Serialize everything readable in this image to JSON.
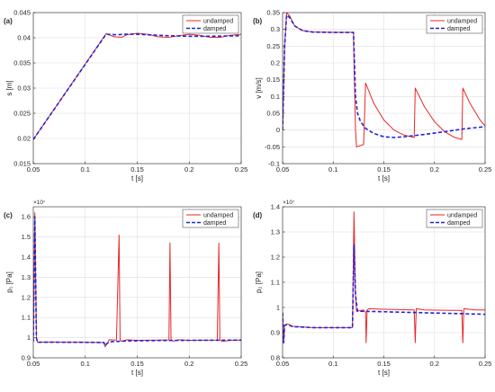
{
  "colors": {
    "undamped": "#e8262a",
    "damped": "#1f24d6",
    "grid": "#dedede",
    "axis": "#262626"
  },
  "chart_data": [
    {
      "id": "a",
      "panel_label": "(a)",
      "type": "line",
      "xlabel": "t [s]",
      "ylabel": "s [m]",
      "exponent": "",
      "xlim": [
        0.05,
        0.25
      ],
      "ylim": [
        0.015,
        0.045
      ],
      "xticks": [
        0.05,
        0.1,
        0.15,
        0.2,
        0.25
      ],
      "xtick_labels": [
        "0.05",
        "0.1",
        "0.15",
        "0.2",
        "0.25"
      ],
      "yticks": [
        0.015,
        0.02,
        0.025,
        0.03,
        0.035,
        0.04,
        0.045
      ],
      "ytick_labels": [
        "0.015",
        "0.02",
        "0.025",
        "0.03",
        "0.035",
        "0.04",
        "0.045"
      ],
      "grid": true,
      "legend": "top-right",
      "series": [
        {
          "name": "undamped",
          "style": "solid",
          "points": [
            [
              0.05,
              0.0198
            ],
            [
              0.12,
              0.0408
            ],
            [
              0.128,
              0.0402
            ],
            [
              0.135,
              0.0401
            ],
            [
              0.14,
              0.0406
            ],
            [
              0.15,
              0.0409
            ],
            [
              0.16,
              0.0407
            ],
            [
              0.17,
              0.0402
            ],
            [
              0.18,
              0.0401
            ],
            [
              0.19,
              0.0404
            ],
            [
              0.2,
              0.0407
            ],
            [
              0.21,
              0.0405
            ],
            [
              0.22,
              0.0401
            ],
            [
              0.23,
              0.0401
            ],
            [
              0.24,
              0.0405
            ],
            [
              0.25,
              0.0407
            ]
          ]
        },
        {
          "name": "damped",
          "style": "dashed",
          "points": [
            [
              0.05,
              0.0198
            ],
            [
              0.12,
              0.0407
            ],
            [
              0.13,
              0.0406
            ],
            [
              0.14,
              0.0407
            ],
            [
              0.15,
              0.0407
            ],
            [
              0.16,
              0.0406
            ],
            [
              0.17,
              0.0405
            ],
            [
              0.18,
              0.0404
            ],
            [
              0.2,
              0.0403
            ],
            [
              0.22,
              0.0403
            ],
            [
              0.25,
              0.0404
            ]
          ]
        }
      ]
    },
    {
      "id": "b",
      "panel_label": "(b)",
      "type": "line",
      "xlabel": "t [s]",
      "ylabel": "v [m/s]",
      "exponent": "",
      "xlim": [
        0.05,
        0.25
      ],
      "ylim": [
        -0.1,
        0.35
      ],
      "xticks": [
        0.05,
        0.1,
        0.15,
        0.2,
        0.25
      ],
      "xtick_labels": [
        "0.05",
        "0.1",
        "0.15",
        "0.2",
        "0.25"
      ],
      "yticks": [
        -0.1,
        -0.05,
        0,
        0.05,
        0.1,
        0.15,
        0.2,
        0.25,
        0.3,
        0.35
      ],
      "ytick_labels": [
        "-0.1",
        "-0.05",
        "0",
        "0.05",
        "0.1",
        "0.15",
        "0.2",
        "0.25",
        "0.3",
        "0.35"
      ],
      "grid": true,
      "legend": "top-right",
      "series": [
        {
          "name": "undamped",
          "style": "solid",
          "points": [
            [
              0.05,
              0.0
            ],
            [
              0.052,
              0.25
            ],
            [
              0.054,
              0.35
            ],
            [
              0.057,
              0.34
            ],
            [
              0.062,
              0.31
            ],
            [
              0.07,
              0.296
            ],
            [
              0.08,
              0.292
            ],
            [
              0.1,
              0.291
            ],
            [
              0.12,
              0.291
            ],
            [
              0.1205,
              0.2
            ],
            [
              0.122,
              0.0
            ],
            [
              0.123,
              -0.05
            ],
            [
              0.13,
              -0.043
            ],
            [
              0.132,
              0.14
            ],
            [
              0.14,
              0.08
            ],
            [
              0.15,
              0.03
            ],
            [
              0.16,
              0.0
            ],
            [
              0.17,
              -0.015
            ],
            [
              0.18,
              -0.022
            ],
            [
              0.181,
              0.125
            ],
            [
              0.19,
              0.07
            ],
            [
              0.2,
              0.025
            ],
            [
              0.21,
              -0.005
            ],
            [
              0.22,
              -0.022
            ],
            [
              0.227,
              -0.028
            ],
            [
              0.228,
              0.125
            ],
            [
              0.235,
              0.08
            ],
            [
              0.245,
              0.03
            ],
            [
              0.25,
              0.012
            ]
          ]
        },
        {
          "name": "damped",
          "style": "dashed",
          "points": [
            [
              0.05,
              0.0
            ],
            [
              0.052,
              0.25
            ],
            [
              0.054,
              0.343
            ],
            [
              0.057,
              0.335
            ],
            [
              0.062,
              0.31
            ],
            [
              0.07,
              0.296
            ],
            [
              0.08,
              0.292
            ],
            [
              0.1,
              0.291
            ],
            [
              0.12,
              0.291
            ],
            [
              0.121,
              0.2
            ],
            [
              0.122,
              0.1
            ],
            [
              0.124,
              0.05
            ],
            [
              0.127,
              0.025
            ],
            [
              0.132,
              0.005
            ],
            [
              0.14,
              -0.01
            ],
            [
              0.15,
              -0.02
            ],
            [
              0.16,
              -0.022
            ],
            [
              0.17,
              -0.02
            ],
            [
              0.19,
              -0.013
            ],
            [
              0.21,
              -0.005
            ],
            [
              0.23,
              0.004
            ],
            [
              0.25,
              0.01
            ]
          ]
        }
      ]
    },
    {
      "id": "c",
      "panel_label": "(c)",
      "type": "line",
      "xlabel": "t [s]",
      "ylabel": "p₁ [Pa]",
      "exponent": "×10⁷",
      "xlim": [
        0.05,
        0.25
      ],
      "ylim": [
        0.9,
        1.65
      ],
      "xticks": [
        0.05,
        0.1,
        0.15,
        0.2,
        0.25
      ],
      "xtick_labels": [
        "0.05",
        "0.1",
        "0.15",
        "0.2",
        "0.25"
      ],
      "yticks": [
        0.9,
        1.0,
        1.1,
        1.2,
        1.3,
        1.4,
        1.5,
        1.6
      ],
      "ytick_labels": [
        "0.9",
        "1",
        "1.1",
        "1.2",
        "1.3",
        "1.4",
        "1.5",
        "1.6"
      ],
      "grid": true,
      "legend": "top-right",
      "series": [
        {
          "name": "undamped",
          "style": "solid",
          "points": [
            [
              0.05,
              0.98
            ],
            [
              0.0515,
              1.62
            ],
            [
              0.053,
              1.0
            ],
            [
              0.054,
              0.977
            ],
            [
              0.06,
              0.978
            ],
            [
              0.1,
              0.977
            ],
            [
              0.118,
              0.976
            ],
            [
              0.119,
              0.955
            ],
            [
              0.121,
              0.97
            ],
            [
              0.123,
              0.99
            ],
            [
              0.13,
              0.988
            ],
            [
              0.1325,
              1.51
            ],
            [
              0.1335,
              0.99
            ],
            [
              0.135,
              0.982
            ],
            [
              0.14,
              0.99
            ],
            [
              0.15,
              0.987
            ],
            [
              0.17,
              0.988
            ],
            [
              0.1805,
              0.989
            ],
            [
              0.1815,
              1.47
            ],
            [
              0.1825,
              0.99
            ],
            [
              0.185,
              0.983
            ],
            [
              0.19,
              0.99
            ],
            [
              0.2,
              0.987
            ],
            [
              0.227,
              0.988
            ],
            [
              0.2285,
              1.47
            ],
            [
              0.2295,
              0.988
            ],
            [
              0.232,
              0.982
            ],
            [
              0.24,
              0.987
            ],
            [
              0.25,
              0.988
            ]
          ]
        },
        {
          "name": "damped",
          "style": "dashed",
          "points": [
            [
              0.05,
              0.98
            ],
            [
              0.0515,
              1.6
            ],
            [
              0.053,
              1.0
            ],
            [
              0.054,
              0.977
            ],
            [
              0.06,
              0.978
            ],
            [
              0.1,
              0.977
            ],
            [
              0.118,
              0.976
            ],
            [
              0.119,
              0.96
            ],
            [
              0.121,
              0.972
            ],
            [
              0.125,
              0.98
            ],
            [
              0.14,
              0.984
            ],
            [
              0.17,
              0.986
            ],
            [
              0.2,
              0.987
            ],
            [
              0.25,
              0.988
            ]
          ]
        }
      ]
    },
    {
      "id": "d",
      "panel_label": "(d)",
      "type": "line",
      "xlabel": "t [s]",
      "ylabel": "p₂ [Pa]",
      "exponent": "×10⁷",
      "xlim": [
        0.05,
        0.25
      ],
      "ylim": [
        0.8,
        1.4
      ],
      "xticks": [
        0.05,
        0.1,
        0.15,
        0.2,
        0.25
      ],
      "xtick_labels": [
        "0.05",
        "0.1",
        "0.15",
        "0.2",
        "0.25"
      ],
      "yticks": [
        0.8,
        0.9,
        1.0,
        1.1,
        1.2,
        1.3,
        1.4
      ],
      "ytick_labels": [
        "0.8",
        "0.9",
        "1",
        "1.1",
        "1.2",
        "1.3",
        "1.4"
      ],
      "grid": true,
      "legend": "top-right",
      "series": [
        {
          "name": "undamped",
          "style": "solid",
          "points": [
            [
              0.05,
              0.98
            ],
            [
              0.051,
              0.86
            ],
            [
              0.052,
              0.93
            ],
            [
              0.055,
              0.935
            ],
            [
              0.06,
              0.925
            ],
            [
              0.08,
              0.92
            ],
            [
              0.119,
              0.92
            ],
            [
              0.1205,
              1.38
            ],
            [
              0.122,
              1.05
            ],
            [
              0.123,
              0.985
            ],
            [
              0.13,
              0.99
            ],
            [
              0.132,
              0.98
            ],
            [
              0.1325,
              0.86
            ],
            [
              0.1335,
              0.99
            ],
            [
              0.135,
              0.995
            ],
            [
              0.15,
              0.993
            ],
            [
              0.18,
              0.99
            ],
            [
              0.181,
              0.86
            ],
            [
              0.182,
              0.995
            ],
            [
              0.19,
              0.99
            ],
            [
              0.21,
              0.989
            ],
            [
              0.227,
              0.988
            ],
            [
              0.228,
              0.86
            ],
            [
              0.229,
              0.995
            ],
            [
              0.24,
              0.99
            ],
            [
              0.25,
              0.99
            ]
          ]
        },
        {
          "name": "damped",
          "style": "dashed",
          "points": [
            [
              0.05,
              0.98
            ],
            [
              0.051,
              0.86
            ],
            [
              0.052,
              0.93
            ],
            [
              0.055,
              0.932
            ],
            [
              0.06,
              0.924
            ],
            [
              0.08,
              0.92
            ],
            [
              0.119,
              0.92
            ],
            [
              0.1205,
              1.25
            ],
            [
              0.122,
              1.05
            ],
            [
              0.124,
              0.985
            ],
            [
              0.14,
              0.984
            ],
            [
              0.16,
              0.982
            ],
            [
              0.18,
              0.98
            ],
            [
              0.2,
              0.978
            ],
            [
              0.22,
              0.976
            ],
            [
              0.25,
              0.973
            ]
          ]
        }
      ]
    }
  ]
}
